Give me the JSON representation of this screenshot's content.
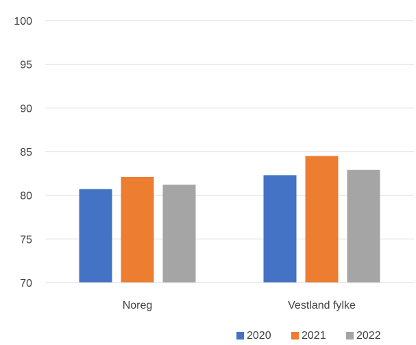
{
  "chart_data": {
    "type": "bar",
    "title": "",
    "xlabel": "",
    "ylabel": "",
    "categories": [
      "Noreg",
      "Vestland fylke"
    ],
    "series": [
      {
        "name": "2020",
        "values": [
          80.7,
          82.3
        ],
        "color": "#4472c4"
      },
      {
        "name": "2021",
        "values": [
          82.1,
          84.5
        ],
        "color": "#ed7d31"
      },
      {
        "name": "2022",
        "values": [
          81.2,
          82.9
        ],
        "color": "#a5a5a5"
      }
    ],
    "ylim": [
      70,
      100
    ],
    "yticks": [
      "70",
      "75",
      "80",
      "85",
      "90",
      "95",
      "100"
    ],
    "grid": true,
    "legend_position": "bottom-right"
  }
}
